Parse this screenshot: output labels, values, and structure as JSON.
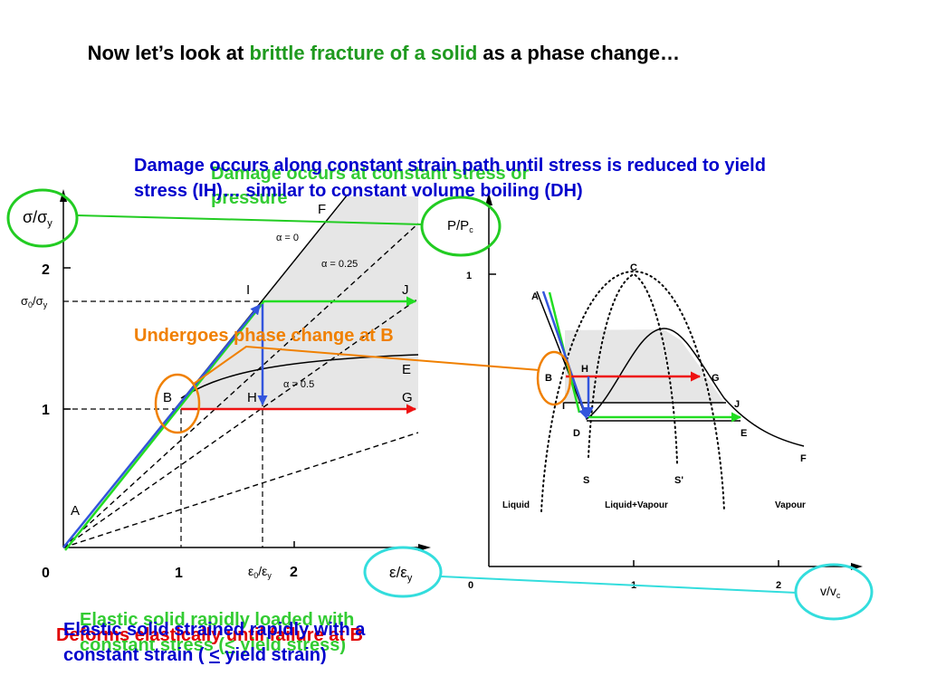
{
  "slide": {
    "title": {
      "before": "Now let’s look at ",
      "highlight": "brittle fracture of a solid",
      "after": " as a phase change…"
    }
  },
  "annotations": {
    "constant_stress_damage": {
      "line1": "Damage occurs at constant stress or",
      "line2": "pressure"
    },
    "constant_strain_damage": {
      "line1": "Damage occurs along constant strain path until stress is reduced to yield",
      "line2": "stress (IH)… similar to constant volume boiling (DH)"
    },
    "phase_change": "Undergoes phase change at B",
    "loaded_stress": {
      "line1": "Elastic solid rapidly loaded with",
      "line2_before": "constant stress (",
      "symbol": "<",
      "line2_after": " yield stress)"
    },
    "deforms": "Deforms elastically until failure at B",
    "strained": {
      "line1": "Elastic solid strained rapidly with a",
      "line2_before": "constant strain ( ",
      "symbol": "<",
      "line2_after": " yield strain)"
    }
  },
  "stress_strain_diagram": {
    "y_axis": {
      "symbol": "σ/σ",
      "sub": "y"
    },
    "x_axis": {
      "symbol": "ε/ε",
      "sub": "y"
    },
    "y_ticks": {
      "two": "2",
      "one": "1",
      "zero": "0"
    },
    "y_yield_tick": {
      "a": "σ",
      "a_sub": "0",
      "b": "/σ",
      "b_sub": "y"
    },
    "x_ticks": {
      "one": "1",
      "two": "2"
    },
    "x_yield_tick": {
      "a": "ε",
      "a_sub": "0",
      "b": "/ε",
      "b_sub": "y"
    },
    "points": {
      "A": "A",
      "B": "B",
      "I": "I",
      "H": "H",
      "J": "J",
      "E": "E",
      "G": "G",
      "F": "F"
    },
    "alpha_labels": {
      "zero": "α = 0",
      "quarter": "α = 0.25",
      "half": "α = 0.5"
    }
  },
  "pv_diagram": {
    "y_axis": {
      "symbol": "P/P",
      "sub": "c"
    },
    "x_axis": {
      "symbol": "v/v",
      "sub": "c"
    },
    "y_ticks": {
      "one": "1"
    },
    "x_ticks": {
      "zero": "0",
      "one": "1",
      "two": "2"
    },
    "points": {
      "C": "C",
      "A": "A",
      "B": "B",
      "H": "H",
      "G": "G",
      "I": "I",
      "J": "J",
      "D": "D",
      "E": "E",
      "F": "F",
      "S": "S",
      "S_prime": "S'"
    },
    "regions": {
      "liquid": "Liquid",
      "two_phase": "Liquid+Vapour",
      "vapour": "Vapour"
    }
  },
  "colors": {
    "title_green": "#1f9a1f",
    "note_green": "#33cc33",
    "note_blue": "#0000cc",
    "note_orange": "#f08000",
    "note_red": "#e00000",
    "path_blue": "#3355dd",
    "path_green": "#22dd22",
    "path_red": "#ee1111",
    "circle_green": "#22cc22",
    "circle_cyan": "#33dddd",
    "shade_gray": "#e6e6e6"
  }
}
